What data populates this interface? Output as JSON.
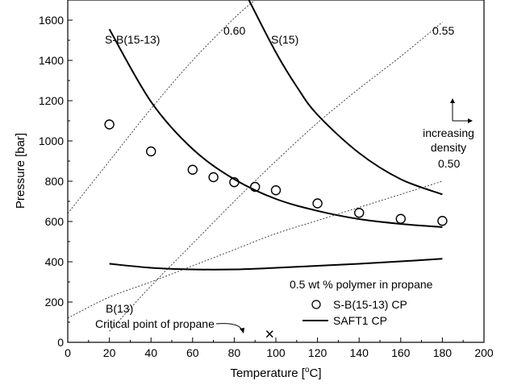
{
  "chart_data": {
    "type": "line",
    "xlabel_main": "Temperature [",
    "xlabel_sup": "o",
    "xlabel_tail": "C]",
    "ylabel": "Pressure [bar]",
    "xlim": [
      0,
      200
    ],
    "ylim": [
      0,
      1700
    ],
    "xticks": [
      "0",
      "20",
      "40",
      "60",
      "80",
      "100",
      "120",
      "140",
      "160",
      "180",
      "200"
    ],
    "yticks": [
      "0",
      "200",
      "400",
      "600",
      "800",
      "1000",
      "1200",
      "1400",
      "1600"
    ],
    "grid": false,
    "legend": {
      "title": "0.5 wt % polymer in propane",
      "placement": "bottom-right",
      "entries": [
        "S-B(15-13) CP",
        "SAFT1 CP"
      ]
    },
    "series": [
      {
        "name": "S-B(15-13) CP",
        "style": "markers",
        "x": [
          20,
          40,
          60,
          70,
          80,
          90,
          100,
          120,
          140,
          160,
          180
        ],
        "y": [
          1082,
          948,
          857,
          820,
          795,
          772,
          755,
          690,
          643,
          613,
          603
        ]
      },
      {
        "name": "SAFT1 CP",
        "style": "line",
        "curves": [
          {
            "label": "S-B(15-13)",
            "x": [
              20,
              40,
              60,
              80,
              100,
              120,
              140,
              160,
              180
            ],
            "y": [
              1555,
              1195,
              960,
              810,
              712,
              653,
              612,
              588,
              572
            ]
          },
          {
            "label": "S(15)",
            "x": [
              87,
              100,
              110,
              120,
              140,
              160,
              180
            ],
            "y": [
              1700,
              1440,
              1270,
              1130,
              940,
              810,
              735
            ]
          },
          {
            "label": "B(13)",
            "x": [
              20,
              40,
              60,
              80,
              100,
              120,
              140,
              160,
              180
            ],
            "y": [
              390,
              370,
              362,
              362,
              370,
              380,
              390,
              402,
              415
            ]
          }
        ]
      },
      {
        "name": "density",
        "style": "dotted",
        "curves": [
          {
            "label": "0.60",
            "x": [
              0,
              20,
              40,
              60,
              80,
              90
            ],
            "y": [
              640,
              900,
              1160,
              1400,
              1610,
              1700
            ]
          },
          {
            "label": "0.55",
            "x": [
              20,
              40,
              60,
              80,
              100,
              120,
              140,
              160,
              180
            ],
            "y": [
              55,
              280,
              490,
              700,
              900,
              1090,
              1260,
              1420,
              1590
            ]
          },
          {
            "label": "0.50",
            "x": [
              0,
              20,
              40,
              60,
              80,
              100,
              120,
              140,
              160,
              180
            ],
            "y": [
              120,
              225,
              300,
              380,
              460,
              540,
              605,
              670,
              735,
              800
            ]
          }
        ]
      }
    ],
    "annotations": {
      "critical_point": {
        "text": "Critical point of propane",
        "x": 97,
        "y": 42,
        "marker": "×"
      },
      "density_note": [
        "increasing",
        "density"
      ]
    }
  }
}
